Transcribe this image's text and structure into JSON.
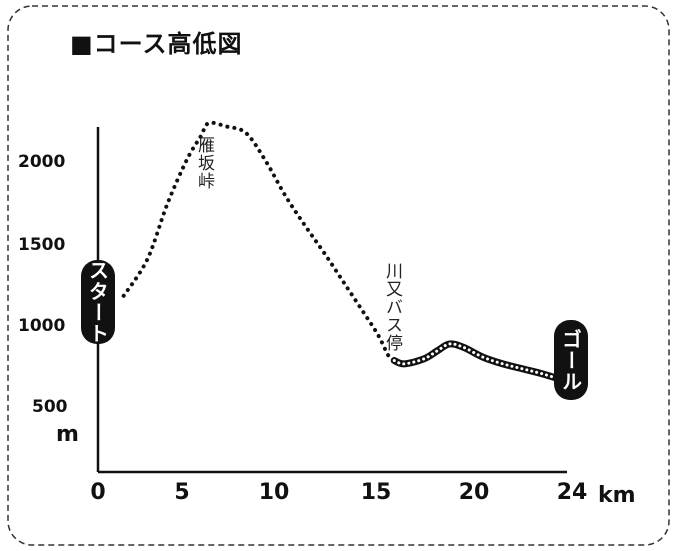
{
  "title": "■コース高低図",
  "labels": {
    "start": "スタート",
    "goal": "ゴール",
    "pass": "雁坂峠",
    "bus_stop": "川又バス停"
  },
  "chart_data": {
    "type": "line",
    "title": "■コース高低図",
    "xlabel": "",
    "ylabel": "",
    "x_unit": "km",
    "y_unit": "m",
    "xlim": [
      0,
      24
    ],
    "ylim": [
      300,
      2300
    ],
    "x_ticks": [
      "0",
      "5",
      "10",
      "15",
      "20",
      "24"
    ],
    "y_ticks": [
      "500",
      "1000",
      "1500",
      "2000"
    ],
    "series": [
      {
        "x": [
          1.3,
          2.5,
          3.5,
          4.5,
          5.2,
          5.6,
          6.5,
          7.5,
          8.5,
          9.5,
          10.5,
          11.5,
          12.5,
          13.5,
          14.2,
          14.7,
          15.0,
          15.5,
          16.5,
          17.2,
          17.8,
          18.5,
          19.5,
          20.5,
          21.5,
          22.5,
          23.6
        ],
        "y": [
          1200,
          1420,
          1750,
          2020,
          2160,
          2240,
          2220,
          2180,
          2010,
          1800,
          1620,
          1450,
          1270,
          1090,
          960,
          840,
          810,
          790,
          820,
          870,
          910,
          890,
          830,
          790,
          760,
          730,
          690
        ]
      }
    ],
    "annotations": [
      {
        "text": "雁坂峠",
        "x": 5.5,
        "y": 2240
      },
      {
        "text": "川又バス停",
        "x": 15.0,
        "y": 810
      },
      {
        "text": "スタート",
        "x": 0,
        "y": 1200
      },
      {
        "text": "ゴール",
        "x": 24,
        "y": 690
      }
    ],
    "grid": false,
    "legend": "none"
  }
}
